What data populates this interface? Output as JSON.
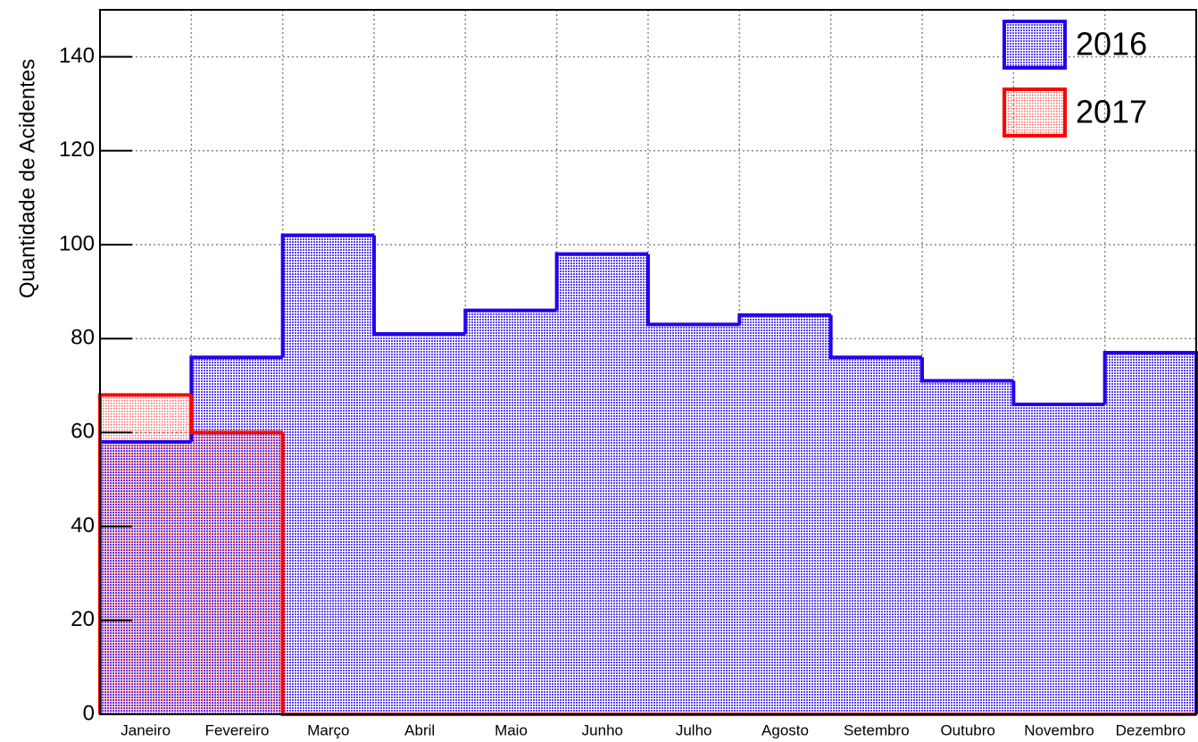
{
  "chart_data": {
    "type": "histogram",
    "ylabel": "Quantidade de Acidentes",
    "categories": [
      "Janeiro",
      "Fevereiro",
      "Março",
      "Abril",
      "Maio",
      "Junho",
      "Julho",
      "Agosto",
      "Setembro",
      "Outubro",
      "Novembro",
      "Dezembro"
    ],
    "series": [
      {
        "name": "2016",
        "color": "#2200ee",
        "values": [
          58,
          76,
          102,
          81,
          86,
          98,
          83,
          85,
          76,
          71,
          66,
          77
        ]
      },
      {
        "name": "2017",
        "color": "#ff0000",
        "values": [
          68,
          60,
          0,
          0,
          0,
          0,
          0,
          0,
          0,
          0,
          0,
          0
        ]
      }
    ],
    "ylim": [
      0,
      150
    ],
    "yticks": [
      0,
      20,
      40,
      60,
      80,
      100,
      120,
      140
    ],
    "grid": true,
    "legend": "upper right"
  }
}
